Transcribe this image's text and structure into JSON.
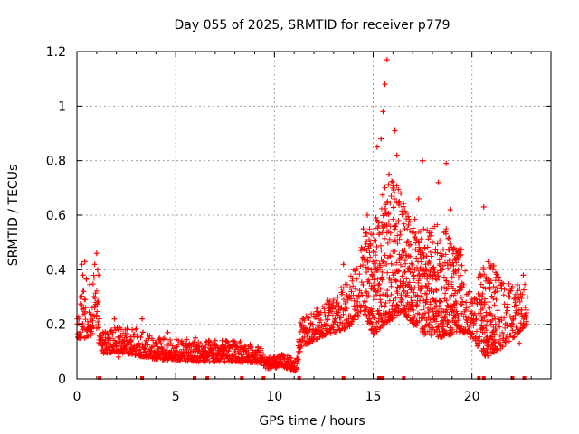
{
  "chart_data": {
    "type": "scatter",
    "title": "Day 055 of 2025, SRMTID for receiver p779",
    "xlabel": "GPS time / hours",
    "ylabel": "SRMTID / TECUs",
    "xlim": [
      0,
      24
    ],
    "ylim": [
      0,
      1.2
    ],
    "x_ticks": [
      "0",
      "5",
      "10",
      "15",
      "20"
    ],
    "y_ticks": [
      "0",
      "0.2",
      "0.4",
      "0.6",
      "0.8",
      "1",
      "1.2"
    ],
    "grid": true,
    "marker": "+",
    "color": "#ff0000",
    "series": [
      {
        "name": "SRMTID",
        "envelope": [
          {
            "t": 0.0,
            "base": 0.18,
            "spread": 0.08
          },
          {
            "t": 0.4,
            "base": 0.22,
            "spread": 0.22
          },
          {
            "t": 0.9,
            "base": 0.25,
            "spread": 0.22
          },
          {
            "t": 1.3,
            "base": 0.12,
            "spread": 0.08
          },
          {
            "t": 2.0,
            "base": 0.13,
            "spread": 0.09
          },
          {
            "t": 3.0,
            "base": 0.12,
            "spread": 0.1
          },
          {
            "t": 4.0,
            "base": 0.1,
            "spread": 0.08
          },
          {
            "t": 6.0,
            "base": 0.09,
            "spread": 0.08
          },
          {
            "t": 8.0,
            "base": 0.09,
            "spread": 0.08
          },
          {
            "t": 9.3,
            "base": 0.08,
            "spread": 0.06
          },
          {
            "t": 9.6,
            "base": 0.05,
            "spread": 0.04
          },
          {
            "t": 10.5,
            "base": 0.06,
            "spread": 0.05
          },
          {
            "t": 11.1,
            "base": 0.04,
            "spread": 0.04
          },
          {
            "t": 11.3,
            "base": 0.15,
            "spread": 0.1
          },
          {
            "t": 12.5,
            "base": 0.2,
            "spread": 0.12
          },
          {
            "t": 13.8,
            "base": 0.25,
            "spread": 0.18
          },
          {
            "t": 14.5,
            "base": 0.35,
            "spread": 0.28
          },
          {
            "t": 15.0,
            "base": 0.3,
            "spread": 0.4
          },
          {
            "t": 15.7,
            "base": 0.4,
            "spread": 0.55
          },
          {
            "t": 16.5,
            "base": 0.4,
            "spread": 0.45
          },
          {
            "t": 17.5,
            "base": 0.3,
            "spread": 0.4
          },
          {
            "t": 18.5,
            "base": 0.3,
            "spread": 0.42
          },
          {
            "t": 19.5,
            "base": 0.28,
            "spread": 0.3
          },
          {
            "t": 20.0,
            "base": 0.2,
            "spread": 0.15
          },
          {
            "t": 20.7,
            "base": 0.22,
            "spread": 0.4
          },
          {
            "t": 21.5,
            "base": 0.2,
            "spread": 0.25
          },
          {
            "t": 22.8,
            "base": 0.25,
            "spread": 0.15
          }
        ],
        "points": [
          [
            0.1,
            0.22
          ],
          [
            0.15,
            0.3
          ],
          [
            0.25,
            0.42
          ],
          [
            0.3,
            0.38
          ],
          [
            0.4,
            0.43
          ],
          [
            0.55,
            0.18
          ],
          [
            0.7,
            0.16
          ],
          [
            0.9,
            0.42
          ],
          [
            1.0,
            0.46
          ],
          [
            1.05,
            0.4
          ],
          [
            1.1,
            0.38
          ],
          [
            1.3,
            0.12
          ],
          [
            1.6,
            0.15
          ],
          [
            1.9,
            0.22
          ],
          [
            2.1,
            0.08
          ],
          [
            2.4,
            0.14
          ],
          [
            2.8,
            0.18
          ],
          [
            3.0,
            0.12
          ],
          [
            3.3,
            0.22
          ],
          [
            3.5,
            0.14
          ],
          [
            4.0,
            0.13
          ],
          [
            4.6,
            0.17
          ],
          [
            5.0,
            0.1
          ],
          [
            5.5,
            0.13
          ],
          [
            6.0,
            0.15
          ],
          [
            6.5,
            0.1
          ],
          [
            7.0,
            0.14
          ],
          [
            7.5,
            0.12
          ],
          [
            8.0,
            0.1
          ],
          [
            8.5,
            0.12
          ],
          [
            9.0,
            0.09
          ],
          [
            9.5,
            0.06
          ],
          [
            10.0,
            0.07
          ],
          [
            10.5,
            0.05
          ],
          [
            11.0,
            0.03
          ],
          [
            11.3,
            0.1
          ],
          [
            11.8,
            0.18
          ],
          [
            12.2,
            0.22
          ],
          [
            12.8,
            0.26
          ],
          [
            13.2,
            0.3
          ],
          [
            13.5,
            0.42
          ],
          [
            13.9,
            0.32
          ],
          [
            14.2,
            0.3
          ],
          [
            14.5,
            0.55
          ],
          [
            14.7,
            0.6
          ],
          [
            14.9,
            0.4
          ],
          [
            15.2,
            0.85
          ],
          [
            15.4,
            0.88
          ],
          [
            15.5,
            0.98
          ],
          [
            15.6,
            1.08
          ],
          [
            15.7,
            1.17
          ],
          [
            15.8,
            0.75
          ],
          [
            16.0,
            0.7
          ],
          [
            16.1,
            0.91
          ],
          [
            16.2,
            0.82
          ],
          [
            16.4,
            0.68
          ],
          [
            16.6,
            0.55
          ],
          [
            16.8,
            0.45
          ],
          [
            17.0,
            0.4
          ],
          [
            17.3,
            0.66
          ],
          [
            17.5,
            0.8
          ],
          [
            17.7,
            0.45
          ],
          [
            18.0,
            0.5
          ],
          [
            18.3,
            0.72
          ],
          [
            18.5,
            0.4
          ],
          [
            18.7,
            0.79
          ],
          [
            18.9,
            0.62
          ],
          [
            19.1,
            0.48
          ],
          [
            19.3,
            0.4
          ],
          [
            19.5,
            0.35
          ],
          [
            19.7,
            0.28
          ],
          [
            20.0,
            0.22
          ],
          [
            20.3,
            0.12
          ],
          [
            20.6,
            0.63
          ],
          [
            20.9,
            0.35
          ],
          [
            21.2,
            0.2
          ],
          [
            21.5,
            0.33
          ],
          [
            21.8,
            0.25
          ],
          [
            22.1,
            0.22
          ],
          [
            22.4,
            0.13
          ],
          [
            22.6,
            0.38
          ],
          [
            22.8,
            0.3
          ]
        ]
      }
    ],
    "bottom_markers_hours": [
      1.15,
      3.3,
      5.95,
      6.6,
      8.35,
      9.45,
      11.25,
      13.5,
      15.3,
      15.45,
      16.55,
      20.35,
      20.6,
      22.05,
      22.65
    ]
  }
}
